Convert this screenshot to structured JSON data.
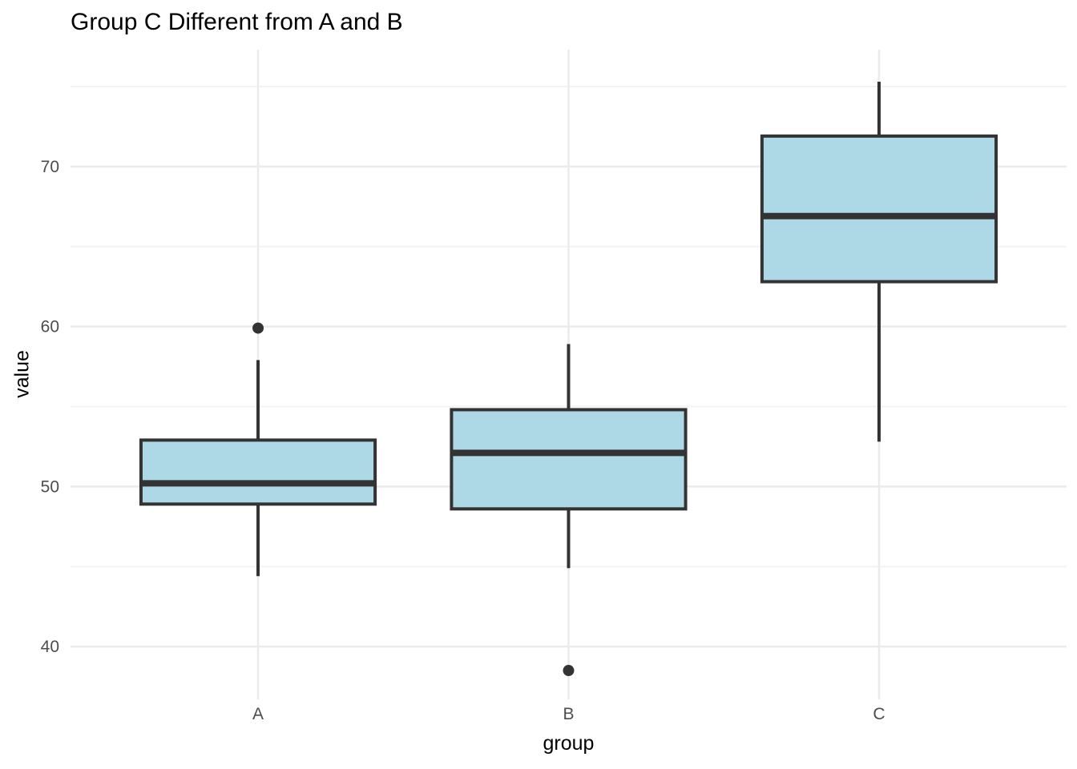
{
  "chart_data": {
    "type": "boxplot",
    "title": "Group C Different from A and B",
    "xlabel": "group",
    "ylabel": "value",
    "categories": [
      "A",
      "B",
      "C"
    ],
    "series": [
      {
        "name": "A",
        "whisker_low": 44.4,
        "q1": 48.9,
        "median": 50.2,
        "q3": 52.9,
        "whisker_high": 57.9,
        "outliers": [
          59.9
        ]
      },
      {
        "name": "B",
        "whisker_low": 44.9,
        "q1": 48.6,
        "median": 52.1,
        "q3": 54.8,
        "whisker_high": 58.9,
        "outliers": [
          38.5
        ]
      },
      {
        "name": "C",
        "whisker_low": 52.8,
        "q1": 62.8,
        "median": 66.9,
        "q3": 71.9,
        "whisker_high": 75.3,
        "outliers": []
      }
    ],
    "y_ticks": [
      40,
      50,
      60,
      70
    ],
    "y_minor_gridlines": [
      45,
      55,
      65,
      75
    ],
    "ylim": [
      36.7,
      77.3
    ],
    "grid": "horizontal major+minor, vertical major at categories",
    "legend": "none",
    "colors": {
      "box_fill": "#ADD8E6",
      "box_stroke": "#333333",
      "median_stroke": "#333333",
      "whisker_stroke": "#333333",
      "outlier_fill": "#333333",
      "grid_major": "#EBEBEB",
      "grid_minor": "#F3F3F3",
      "tick_label": "#4D4D4D",
      "axis_title": "#000000",
      "title": "#000000",
      "background": "#FFFFFF"
    }
  }
}
